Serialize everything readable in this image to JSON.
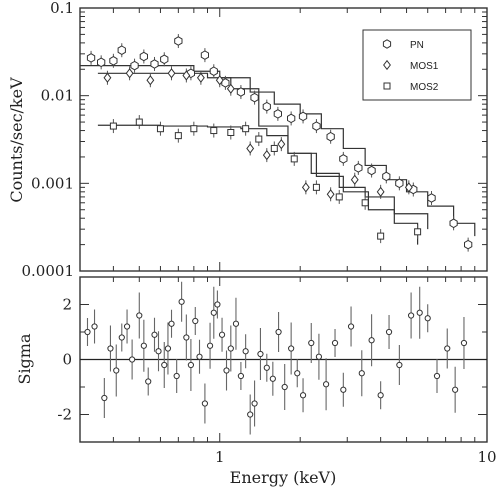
{
  "chart_data": [
    {
      "panel": "spectrum",
      "type": "scatter",
      "xlabel": "Energy (keV)",
      "ylabel": "Counts/sec/keV",
      "xscale": "log",
      "yscale": "log",
      "xlim": [
        0.3,
        10
      ],
      "ylim": [
        0.0001,
        0.1
      ],
      "xticks": [
        "1",
        "10"
      ],
      "yticks": [
        "0.0001",
        "0.001",
        "0.01",
        "0.1"
      ],
      "legend": {
        "placement": "top-right",
        "entries": [
          "PN",
          "MOS1",
          "MOS2"
        ]
      },
      "series": [
        {
          "name": "PN",
          "marker": "hexagon",
          "points": [
            [
              0.33,
              0.027
            ],
            [
              0.36,
              0.024
            ],
            [
              0.4,
              0.025
            ],
            [
              0.43,
              0.033
            ],
            [
              0.48,
              0.022
            ],
            [
              0.52,
              0.028
            ],
            [
              0.57,
              0.023
            ],
            [
              0.62,
              0.026
            ],
            [
              0.7,
              0.042
            ],
            [
              0.78,
              0.018
            ],
            [
              0.88,
              0.029
            ],
            [
              0.95,
              0.019
            ],
            [
              1.05,
              0.014
            ],
            [
              1.2,
              0.011
            ],
            [
              1.35,
              0.0095
            ],
            [
              1.5,
              0.0075
            ],
            [
              1.65,
              0.0062
            ],
            [
              1.85,
              0.0055
            ],
            [
              2.05,
              0.0058
            ],
            [
              2.3,
              0.0045
            ],
            [
              2.6,
              0.0034
            ],
            [
              2.9,
              0.0019
            ],
            [
              3.3,
              0.0015
            ],
            [
              3.7,
              0.0014
            ],
            [
              4.2,
              0.0012
            ],
            [
              4.7,
              0.001
            ],
            [
              5.3,
              0.00085
            ],
            [
              6.2,
              0.00068
            ],
            [
              7.5,
              0.00035
            ],
            [
              8.5,
              0.0002
            ]
          ],
          "model": [
            [
              0.3,
              0.022
            ],
            [
              0.5,
              0.022
            ],
            [
              0.8,
              0.019
            ],
            [
              1.0,
              0.016
            ],
            [
              1.3,
              0.011
            ],
            [
              1.6,
              0.008
            ],
            [
              2.0,
              0.0062
            ],
            [
              2.4,
              0.0042
            ],
            [
              2.9,
              0.0025
            ],
            [
              3.5,
              0.0016
            ],
            [
              4.2,
              0.0011
            ],
            [
              5.0,
              0.0008
            ],
            [
              6.0,
              0.00055
            ],
            [
              7.5,
              0.00035
            ],
            [
              9.0,
              0.00025
            ]
          ]
        },
        {
          "name": "MOS1",
          "marker": "diamond",
          "points": [
            [
              0.38,
              0.016
            ],
            [
              0.46,
              0.018
            ],
            [
              0.55,
              0.015
            ],
            [
              0.66,
              0.018
            ],
            [
              0.75,
              0.017
            ],
            [
              0.85,
              0.016
            ],
            [
              1.0,
              0.015
            ],
            [
              1.1,
              0.012
            ],
            [
              1.3,
              0.0025
            ],
            [
              1.5,
              0.0021
            ],
            [
              1.7,
              0.0028
            ],
            [
              2.1,
              0.0009
            ],
            [
              2.6,
              0.00075
            ],
            [
              3.2,
              0.0011
            ],
            [
              4.0,
              0.0008
            ],
            [
              5.1,
              0.0009
            ]
          ],
          "model": [
            [
              0.35,
              0.018
            ],
            [
              0.6,
              0.018
            ],
            [
              0.9,
              0.016
            ],
            [
              1.1,
              0.012
            ],
            [
              1.4,
              0.0045
            ],
            [
              1.8,
              0.0022
            ],
            [
              2.2,
              0.0013
            ],
            [
              2.8,
              0.0009
            ],
            [
              3.5,
              0.0007
            ],
            [
              4.5,
              0.00045
            ],
            [
              6.0,
              0.0003
            ]
          ]
        },
        {
          "name": "MOS2",
          "marker": "square",
          "points": [
            [
              0.4,
              0.0045
            ],
            [
              0.5,
              0.005
            ],
            [
              0.6,
              0.0042
            ],
            [
              0.7,
              0.0035
            ],
            [
              0.8,
              0.0042
            ],
            [
              0.95,
              0.004
            ],
            [
              1.1,
              0.0038
            ],
            [
              1.25,
              0.0042
            ],
            [
              1.4,
              0.0032
            ],
            [
              1.6,
              0.0025
            ],
            [
              1.9,
              0.0019
            ],
            [
              2.3,
              0.0009
            ],
            [
              2.8,
              0.0007
            ],
            [
              3.5,
              0.0006
            ],
            [
              4.0,
              0.00025
            ],
            [
              5.5,
              0.00028
            ]
          ],
          "model": [
            [
              0.35,
              0.0046
            ],
            [
              0.6,
              0.0045
            ],
            [
              0.9,
              0.0044
            ],
            [
              1.2,
              0.0042
            ],
            [
              1.5,
              0.0035
            ],
            [
              1.8,
              0.0022
            ],
            [
              2.3,
              0.0012
            ],
            [
              2.9,
              0.0008
            ],
            [
              3.6,
              0.0005
            ],
            [
              4.5,
              0.00035
            ],
            [
              5.5,
              0.0002
            ]
          ]
        }
      ]
    },
    {
      "panel": "residuals",
      "type": "scatter",
      "xlabel": "Energy (keV)",
      "ylabel": "Sigma",
      "xscale": "log",
      "xlim": [
        0.3,
        10
      ],
      "ylim": [
        -3,
        3
      ],
      "xticks": [
        "1",
        "10"
      ],
      "yticks": [
        "-2",
        "0",
        "2"
      ],
      "reference_line": 0,
      "points": [
        [
          0.32,
          1.0
        ],
        [
          0.34,
          1.2
        ],
        [
          0.37,
          -1.4
        ],
        [
          0.39,
          0.4
        ],
        [
          0.41,
          -0.4
        ],
        [
          0.43,
          0.8
        ],
        [
          0.45,
          1.2
        ],
        [
          0.47,
          0.0
        ],
        [
          0.5,
          1.6
        ],
        [
          0.52,
          0.5
        ],
        [
          0.54,
          -0.8
        ],
        [
          0.57,
          0.9
        ],
        [
          0.59,
          0.3
        ],
        [
          0.62,
          -0.2
        ],
        [
          0.64,
          0.4
        ],
        [
          0.66,
          1.3
        ],
        [
          0.69,
          -0.6
        ],
        [
          0.72,
          2.1
        ],
        [
          0.75,
          0.8
        ],
        [
          0.78,
          -0.2
        ],
        [
          0.81,
          1.4
        ],
        [
          0.84,
          0.1
        ],
        [
          0.88,
          -1.6
        ],
        [
          0.92,
          0.5
        ],
        [
          0.95,
          1.7
        ],
        [
          0.98,
          2.0
        ],
        [
          1.02,
          0.9
        ],
        [
          1.06,
          -0.4
        ],
        [
          1.1,
          0.4
        ],
        [
          1.15,
          1.3
        ],
        [
          1.2,
          -0.6
        ],
        [
          1.25,
          0.3
        ],
        [
          1.3,
          -2.0
        ],
        [
          1.35,
          -1.6
        ],
        [
          1.42,
          0.2
        ],
        [
          1.5,
          -0.3
        ],
        [
          1.58,
          -0.7
        ],
        [
          1.66,
          1.0
        ],
        [
          1.75,
          -1.0
        ],
        [
          1.85,
          0.4
        ],
        [
          1.95,
          -0.5
        ],
        [
          2.05,
          -1.3
        ],
        [
          2.2,
          0.6
        ],
        [
          2.35,
          0.1
        ],
        [
          2.5,
          -0.9
        ],
        [
          2.7,
          0.6
        ],
        [
          2.9,
          -1.1
        ],
        [
          3.1,
          1.2
        ],
        [
          3.4,
          -0.5
        ],
        [
          3.7,
          0.7
        ],
        [
          4.0,
          -1.3
        ],
        [
          4.3,
          1.0
        ],
        [
          4.7,
          -0.2
        ],
        [
          5.2,
          1.6
        ],
        [
          5.6,
          1.7
        ],
        [
          6.0,
          1.5
        ],
        [
          6.5,
          -0.6
        ],
        [
          7.1,
          0.4
        ],
        [
          7.6,
          -1.1
        ],
        [
          8.2,
          0.6
        ]
      ]
    }
  ]
}
